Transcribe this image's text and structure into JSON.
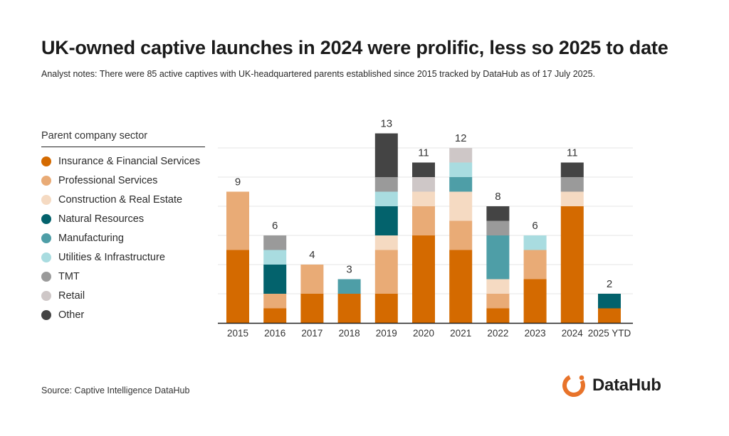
{
  "header": {
    "title": "UK-owned captive launches in 2024 were prolific, less so 2025 to date",
    "subtitle": "Analyst notes: There were 85 active captives with UK-headquartered parents established since 2015 tracked by DataHub as of 17 July 2025."
  },
  "legend": {
    "title": "Parent company sector"
  },
  "footer": {
    "source": "Source: Captive Intelligence DataHub",
    "logo_text": "DataHub"
  },
  "chart_data": {
    "type": "bar",
    "stacked": true,
    "categories": [
      "2015",
      "2016",
      "2017",
      "2018",
      "2019",
      "2020",
      "2021",
      "2022",
      "2023",
      "2024",
      "2025 YTD"
    ],
    "totals": [
      9,
      6,
      4,
      3,
      13,
      11,
      12,
      8,
      6,
      11,
      2
    ],
    "ylim": [
      0,
      13
    ],
    "grid": true,
    "legend_position": "left",
    "series": [
      {
        "name": "Insurance & Financial Services",
        "color": "#D46A00",
        "values": [
          5,
          1,
          2,
          2,
          2,
          6,
          5,
          1,
          3,
          8,
          1
        ]
      },
      {
        "name": "Professional Services",
        "color": "#E9AB76",
        "values": [
          4,
          1,
          2,
          0,
          3,
          2,
          2,
          1,
          2,
          0,
          0
        ]
      },
      {
        "name": "Construction & Real Estate",
        "color": "#F5DAC2",
        "values": [
          0,
          0,
          0,
          0,
          1,
          1,
          2,
          1,
          0,
          1,
          0
        ]
      },
      {
        "name": "Natural Resources",
        "color": "#03626C",
        "values": [
          0,
          2,
          0,
          0,
          2,
          0,
          0,
          0,
          0,
          0,
          1
        ]
      },
      {
        "name": "Manufacturing",
        "color": "#4E9EA7",
        "values": [
          0,
          0,
          0,
          1,
          0,
          0,
          1,
          3,
          0,
          0,
          0
        ]
      },
      {
        "name": "Utilities & Infrastructure",
        "color": "#A9DCE0",
        "values": [
          0,
          1,
          0,
          0,
          1,
          0,
          1,
          0,
          1,
          0,
          0
        ]
      },
      {
        "name": "TMT",
        "color": "#9A9A9A",
        "values": [
          0,
          1,
          0,
          0,
          1,
          0,
          0,
          1,
          0,
          1,
          0
        ]
      },
      {
        "name": "Retail",
        "color": "#CEC7C7",
        "values": [
          0,
          0,
          0,
          0,
          0,
          1,
          1,
          0,
          0,
          0,
          0
        ]
      },
      {
        "name": "Other",
        "color": "#444444",
        "values": [
          0,
          0,
          0,
          0,
          3,
          1,
          0,
          1,
          0,
          1,
          0
        ]
      }
    ]
  }
}
